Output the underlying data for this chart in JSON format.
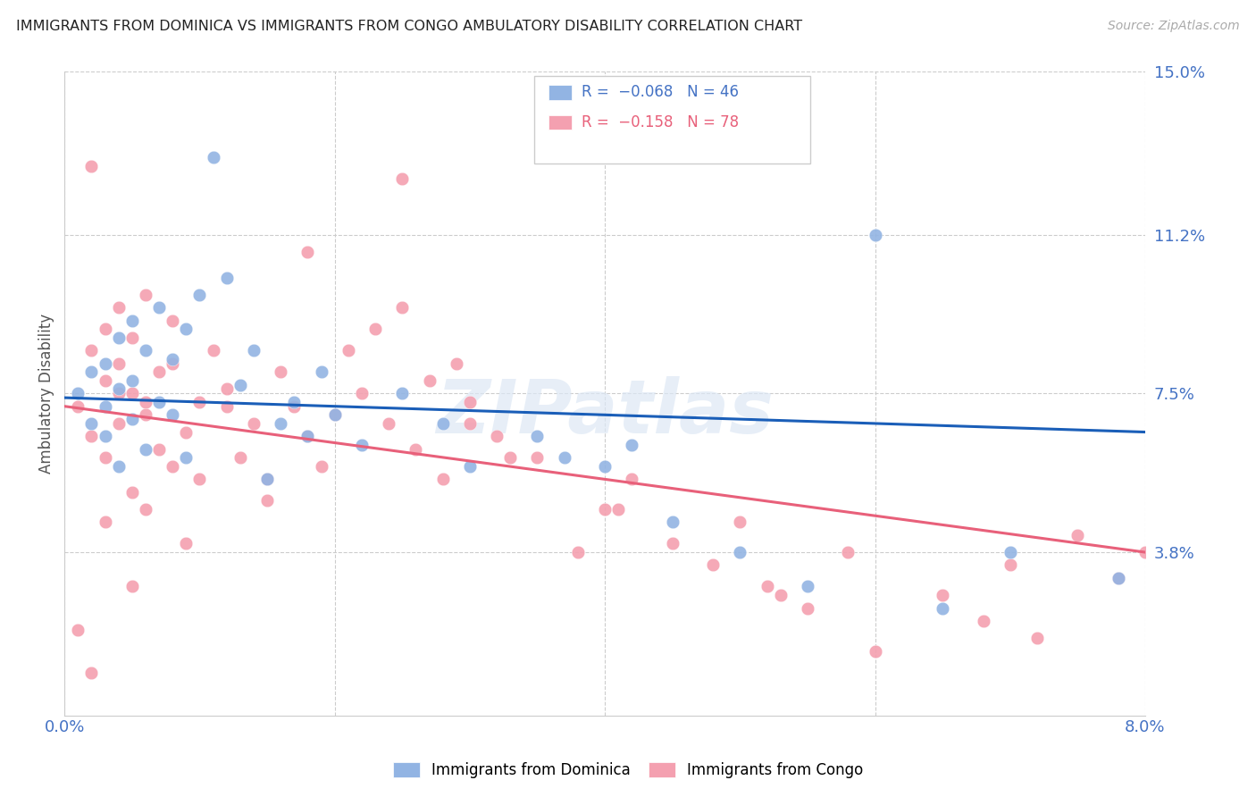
{
  "title": "IMMIGRANTS FROM DOMINICA VS IMMIGRANTS FROM CONGO AMBULATORY DISABILITY CORRELATION CHART",
  "source": "Source: ZipAtlas.com",
  "ylabel": "Ambulatory Disability",
  "xlim": [
    0.0,
    0.08
  ],
  "ylim": [
    0.0,
    0.15
  ],
  "ytick_labels_right": [
    "15.0%",
    "11.2%",
    "7.5%",
    "3.8%"
  ],
  "ytick_values_right": [
    0.15,
    0.112,
    0.075,
    0.038
  ],
  "dominica_color": "#92b4e3",
  "congo_color": "#f4a0b0",
  "dominica_line_color": "#1a5eb8",
  "congo_line_color": "#e8607a",
  "legend_r_dominica": "-0.068",
  "legend_n_dominica": "46",
  "legend_r_congo": "-0.158",
  "legend_n_congo": "78",
  "watermark": "ZIPatlas",
  "dominica_points_x": [
    0.001,
    0.002,
    0.002,
    0.003,
    0.003,
    0.003,
    0.004,
    0.004,
    0.004,
    0.005,
    0.005,
    0.005,
    0.006,
    0.006,
    0.007,
    0.007,
    0.008,
    0.008,
    0.009,
    0.009,
    0.01,
    0.011,
    0.012,
    0.013,
    0.014,
    0.015,
    0.016,
    0.017,
    0.018,
    0.019,
    0.02,
    0.022,
    0.025,
    0.028,
    0.03,
    0.035,
    0.037,
    0.04,
    0.042,
    0.045,
    0.05,
    0.055,
    0.06,
    0.065,
    0.07,
    0.078
  ],
  "dominica_points_y": [
    0.075,
    0.068,
    0.08,
    0.072,
    0.065,
    0.082,
    0.076,
    0.058,
    0.088,
    0.069,
    0.092,
    0.078,
    0.062,
    0.085,
    0.073,
    0.095,
    0.083,
    0.07,
    0.09,
    0.06,
    0.098,
    0.13,
    0.102,
    0.077,
    0.085,
    0.055,
    0.068,
    0.073,
    0.065,
    0.08,
    0.07,
    0.063,
    0.075,
    0.068,
    0.058,
    0.065,
    0.06,
    0.058,
    0.063,
    0.045,
    0.038,
    0.03,
    0.112,
    0.025,
    0.038,
    0.032
  ],
  "congo_points_x": [
    0.001,
    0.001,
    0.002,
    0.002,
    0.002,
    0.003,
    0.003,
    0.003,
    0.003,
    0.004,
    0.004,
    0.004,
    0.005,
    0.005,
    0.005,
    0.005,
    0.006,
    0.006,
    0.006,
    0.007,
    0.007,
    0.008,
    0.008,
    0.009,
    0.009,
    0.01,
    0.01,
    0.011,
    0.012,
    0.013,
    0.014,
    0.015,
    0.016,
    0.017,
    0.018,
    0.019,
    0.02,
    0.021,
    0.022,
    0.023,
    0.024,
    0.025,
    0.026,
    0.027,
    0.028,
    0.029,
    0.03,
    0.032,
    0.035,
    0.038,
    0.04,
    0.042,
    0.045,
    0.048,
    0.05,
    0.052,
    0.055,
    0.058,
    0.06,
    0.065,
    0.068,
    0.07,
    0.072,
    0.075,
    0.078,
    0.08,
    0.025,
    0.03,
    0.018,
    0.012,
    0.008,
    0.006,
    0.004,
    0.002,
    0.015,
    0.033,
    0.041,
    0.053
  ],
  "congo_points_y": [
    0.072,
    0.02,
    0.065,
    0.085,
    0.01,
    0.078,
    0.06,
    0.09,
    0.045,
    0.082,
    0.068,
    0.095,
    0.075,
    0.052,
    0.088,
    0.03,
    0.07,
    0.048,
    0.098,
    0.062,
    0.08,
    0.058,
    0.092,
    0.066,
    0.04,
    0.073,
    0.055,
    0.085,
    0.076,
    0.06,
    0.068,
    0.05,
    0.08,
    0.072,
    0.065,
    0.058,
    0.07,
    0.085,
    0.075,
    0.09,
    0.068,
    0.125,
    0.062,
    0.078,
    0.055,
    0.082,
    0.073,
    0.065,
    0.06,
    0.038,
    0.048,
    0.055,
    0.04,
    0.035,
    0.045,
    0.03,
    0.025,
    0.038,
    0.015,
    0.028,
    0.022,
    0.035,
    0.018,
    0.042,
    0.032,
    0.038,
    0.095,
    0.068,
    0.108,
    0.072,
    0.082,
    0.073,
    0.075,
    0.128,
    0.055,
    0.06,
    0.048,
    0.028
  ]
}
